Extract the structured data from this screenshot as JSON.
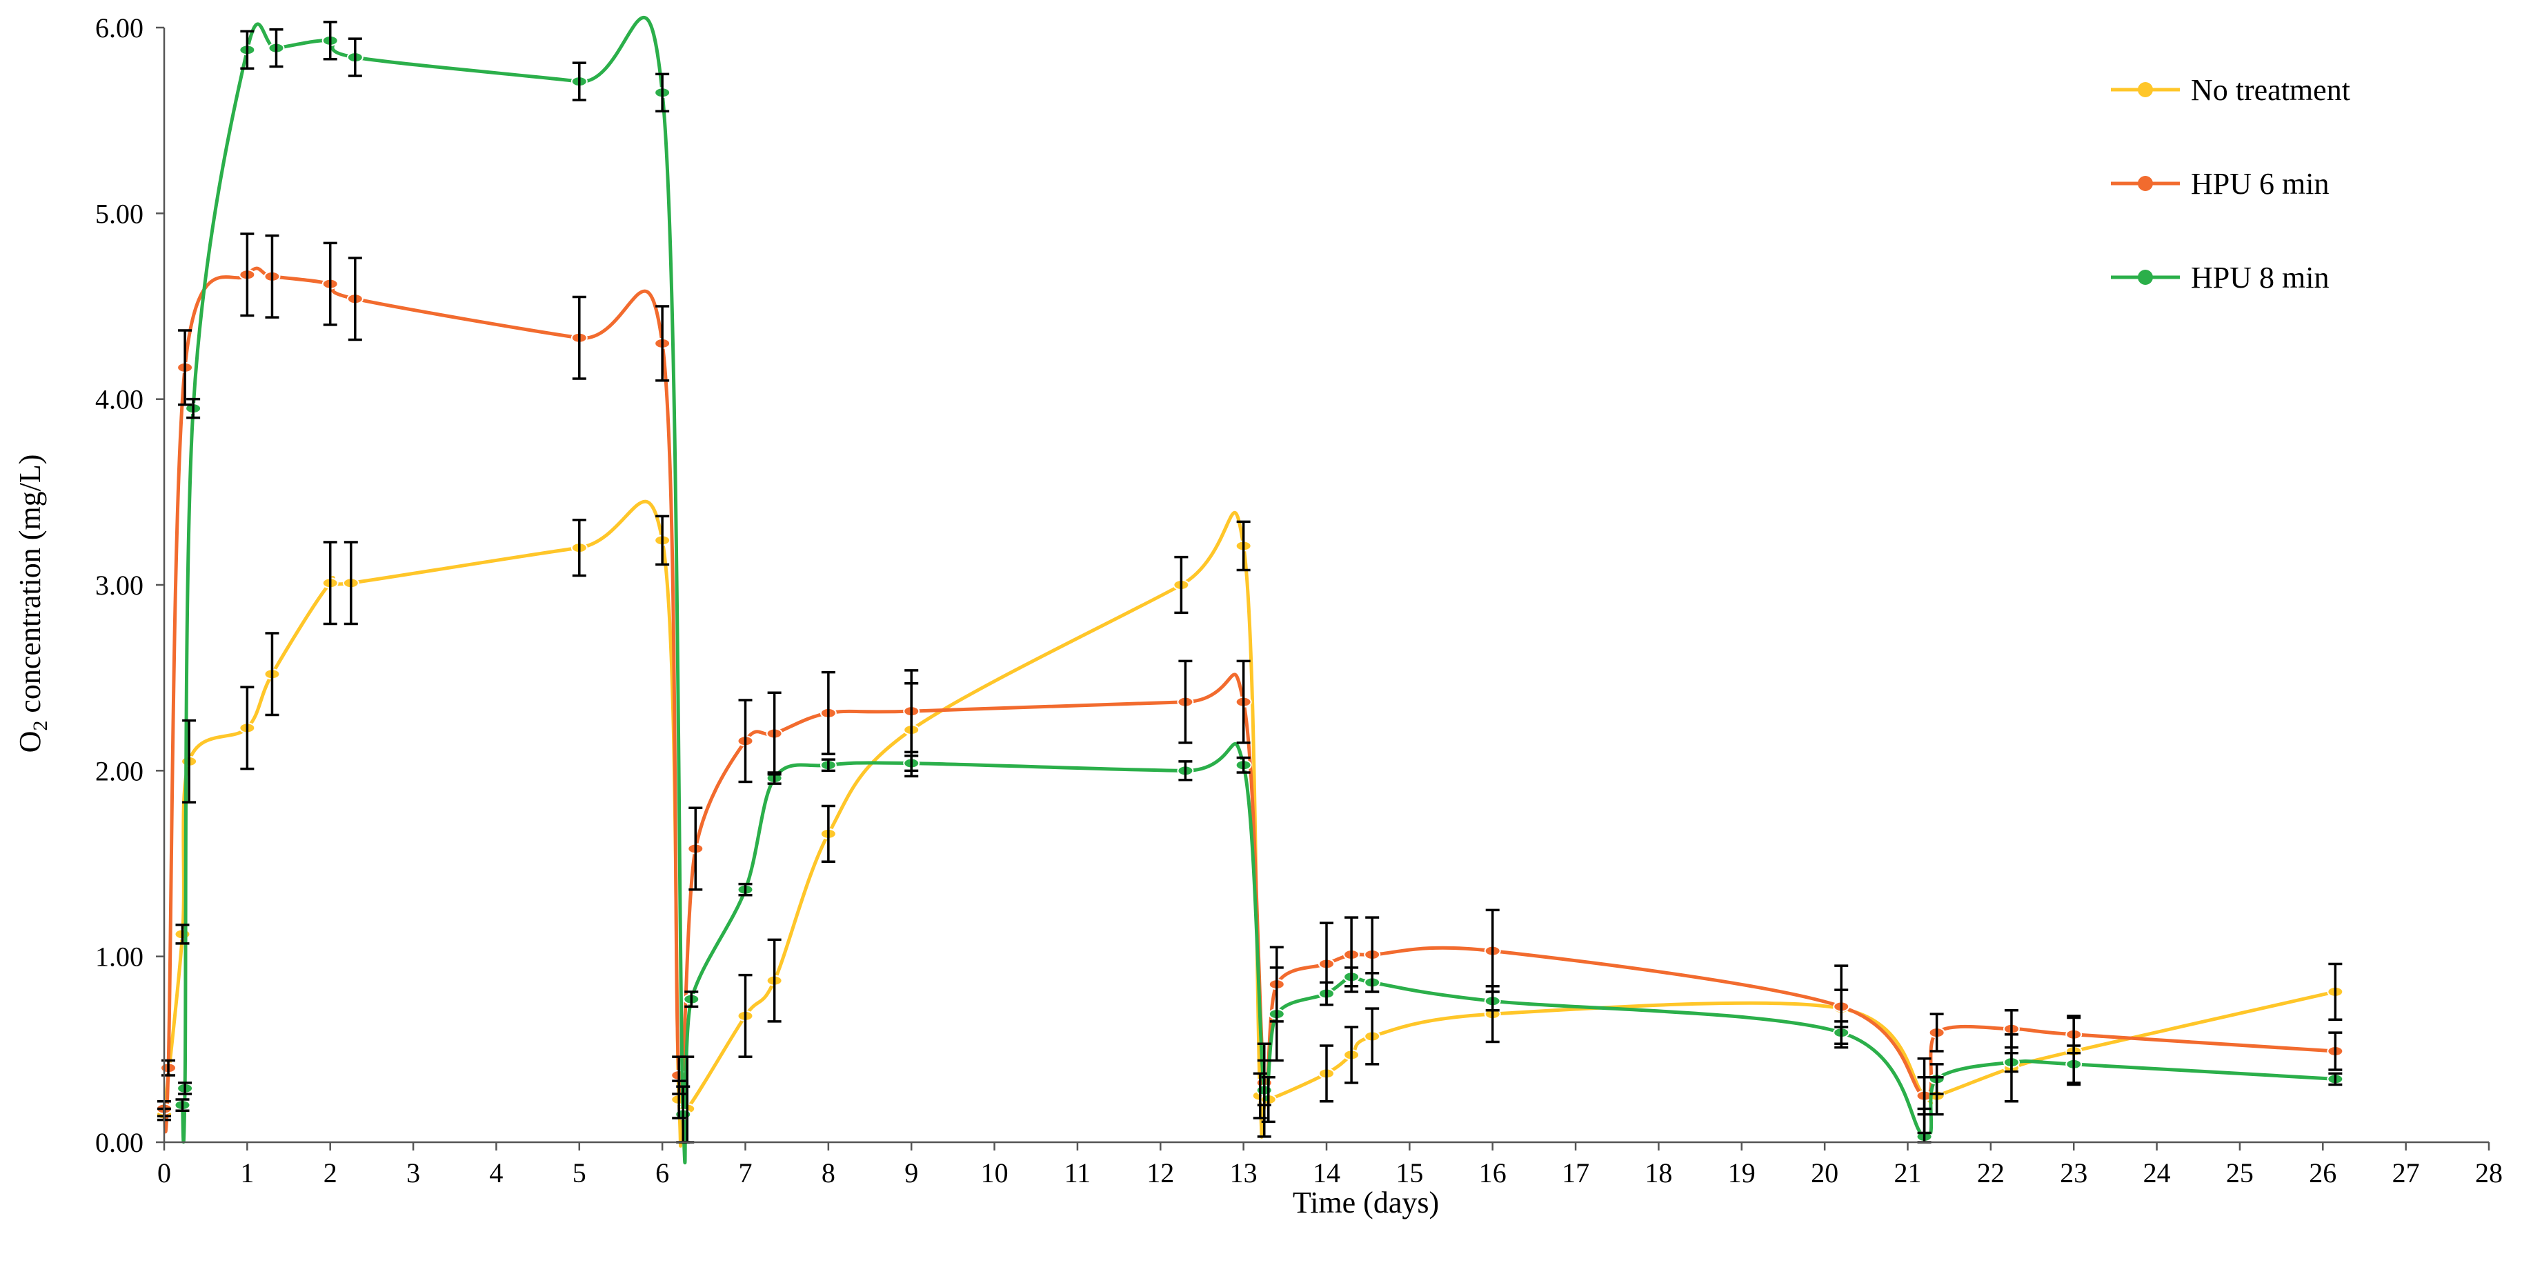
{
  "chart_data": {
    "type": "line",
    "xlabel": "Time (days)",
    "ylabel_prefix": "O",
    "ylabel_subscript": "2",
    "ylabel_suffix": " concentration (mg/L)",
    "xlim": [
      0,
      28
    ],
    "ylim": [
      0,
      6
    ],
    "x_ticks": [
      "0",
      "1",
      "2",
      "3",
      "4",
      "5",
      "6",
      "7",
      "8",
      "9",
      "10",
      "11",
      "12",
      "13",
      "14",
      "15",
      "16",
      "17",
      "18",
      "19",
      "20",
      "21",
      "22",
      "23",
      "24",
      "25",
      "26",
      "27",
      "28"
    ],
    "y_ticks": [
      "0.00",
      "1.00",
      "2.00",
      "3.00",
      "4.00",
      "5.00",
      "6.00"
    ],
    "y_tick_values": [
      0,
      1,
      2,
      3,
      4,
      5,
      6
    ],
    "grid": false,
    "legend_position": "top-right",
    "series": [
      {
        "name": "No treatment",
        "color": "#FFC629",
        "points": [
          {
            "x": 0.0,
            "y": 0.15,
            "err": 0.03
          },
          {
            "x": 0.22,
            "y": 1.12,
            "err": 0.05
          },
          {
            "x": 0.3,
            "y": 2.05,
            "err": 0.22
          },
          {
            "x": 1.0,
            "y": 2.23,
            "err": 0.22
          },
          {
            "x": 1.3,
            "y": 2.52,
            "err": 0.22
          },
          {
            "x": 2.0,
            "y": 3.01,
            "err": 0.22
          },
          {
            "x": 2.25,
            "y": 3.01,
            "err": 0.22
          },
          {
            "x": 5.0,
            "y": 3.2,
            "err": 0.15
          },
          {
            "x": 6.0,
            "y": 3.24,
            "err": 0.13
          },
          {
            "x": 6.2,
            "y": 0.23,
            "err": 0.1
          },
          {
            "x": 6.3,
            "y": 0.18,
            "err": 0.28
          },
          {
            "x": 7.0,
            "y": 0.68,
            "err": 0.22
          },
          {
            "x": 7.35,
            "y": 0.87,
            "err": 0.22
          },
          {
            "x": 8.0,
            "y": 1.66,
            "err": 0.15
          },
          {
            "x": 9.0,
            "y": 2.22,
            "err": 0.25
          },
          {
            "x": 12.25,
            "y": 3.0,
            "err": 0.15
          },
          {
            "x": 13.0,
            "y": 3.21,
            "err": 0.13
          },
          {
            "x": 13.2,
            "y": 0.25,
            "err": 0.12
          },
          {
            "x": 13.3,
            "y": 0.23,
            "err": 0.12
          },
          {
            "x": 14.0,
            "y": 0.37,
            "err": 0.15
          },
          {
            "x": 14.3,
            "y": 0.47,
            "err": 0.15
          },
          {
            "x": 14.55,
            "y": 0.57,
            "err": 0.15
          },
          {
            "x": 16.0,
            "y": 0.69,
            "err": 0.15
          },
          {
            "x": 20.2,
            "y": 0.72,
            "err": 0.1
          },
          {
            "x": 21.2,
            "y": 0.25,
            "err": 0.1
          },
          {
            "x": 21.35,
            "y": 0.25,
            "err": 0.1
          },
          {
            "x": 22.25,
            "y": 0.4,
            "err": 0.18
          },
          {
            "x": 23.0,
            "y": 0.49,
            "err": 0.18
          },
          {
            "x": 26.15,
            "y": 0.81,
            "err": 0.15
          }
        ]
      },
      {
        "name": "HPU 6 min",
        "color": "#F26B2E",
        "points": [
          {
            "x": 0.0,
            "y": 0.18,
            "err": 0.04
          },
          {
            "x": 0.05,
            "y": 0.4,
            "err": 0.04
          },
          {
            "x": 0.25,
            "y": 4.17,
            "err": 0.2
          },
          {
            "x": 1.0,
            "y": 4.67,
            "err": 0.22
          },
          {
            "x": 1.3,
            "y": 4.66,
            "err": 0.22
          },
          {
            "x": 2.0,
            "y": 4.62,
            "err": 0.22
          },
          {
            "x": 2.3,
            "y": 4.54,
            "err": 0.22
          },
          {
            "x": 5.0,
            "y": 4.33,
            "err": 0.22
          },
          {
            "x": 6.0,
            "y": 4.3,
            "err": 0.2
          },
          {
            "x": 6.2,
            "y": 0.36,
            "err": 0.1
          },
          {
            "x": 6.4,
            "y": 1.58,
            "err": 0.22
          },
          {
            "x": 7.0,
            "y": 2.16,
            "err": 0.22
          },
          {
            "x": 7.35,
            "y": 2.2,
            "err": 0.22
          },
          {
            "x": 8.0,
            "y": 2.31,
            "err": 0.22
          },
          {
            "x": 9.0,
            "y": 2.32,
            "err": 0.22
          },
          {
            "x": 12.3,
            "y": 2.37,
            "err": 0.22
          },
          {
            "x": 13.0,
            "y": 2.37,
            "err": 0.22
          },
          {
            "x": 13.25,
            "y": 0.32,
            "err": 0.12
          },
          {
            "x": 13.4,
            "y": 0.85,
            "err": 0.2
          },
          {
            "x": 14.0,
            "y": 0.96,
            "err": 0.22
          },
          {
            "x": 14.3,
            "y": 1.01,
            "err": 0.2
          },
          {
            "x": 14.55,
            "y": 1.01,
            "err": 0.2
          },
          {
            "x": 16.0,
            "y": 1.03,
            "err": 0.22
          },
          {
            "x": 20.2,
            "y": 0.73,
            "err": 0.22
          },
          {
            "x": 21.2,
            "y": 0.25,
            "err": 0.2
          },
          {
            "x": 21.35,
            "y": 0.59,
            "err": 0.1
          },
          {
            "x": 22.25,
            "y": 0.61,
            "err": 0.1
          },
          {
            "x": 23.0,
            "y": 0.58,
            "err": 0.1
          },
          {
            "x": 26.15,
            "y": 0.49,
            "err": 0.1
          }
        ]
      },
      {
        "name": "HPU 8 min",
        "color": "#2BAF4A",
        "points": [
          {
            "x": 0.22,
            "y": 0.2,
            "err": 0.03
          },
          {
            "x": 0.25,
            "y": 0.29,
            "err": 0.03
          },
          {
            "x": 0.35,
            "y": 3.95,
            "err": 0.05
          },
          {
            "x": 1.0,
            "y": 5.88,
            "err": 0.1
          },
          {
            "x": 1.35,
            "y": 5.89,
            "err": 0.1
          },
          {
            "x": 2.0,
            "y": 5.93,
            "err": 0.1
          },
          {
            "x": 2.3,
            "y": 5.84,
            "err": 0.1
          },
          {
            "x": 5.0,
            "y": 5.71,
            "err": 0.1
          },
          {
            "x": 6.0,
            "y": 5.65,
            "err": 0.1
          },
          {
            "x": 6.25,
            "y": 0.15,
            "err": 0.15
          },
          {
            "x": 6.35,
            "y": 0.77,
            "err": 0.04
          },
          {
            "x": 7.0,
            "y": 1.36,
            "err": 0.03
          },
          {
            "x": 7.35,
            "y": 1.96,
            "err": 0.03
          },
          {
            "x": 8.0,
            "y": 2.03,
            "err": 0.03
          },
          {
            "x": 9.0,
            "y": 2.04,
            "err": 0.04
          },
          {
            "x": 12.3,
            "y": 2.0,
            "err": 0.05
          },
          {
            "x": 13.0,
            "y": 2.03,
            "err": 0.04
          },
          {
            "x": 13.25,
            "y": 0.28,
            "err": 0.25
          },
          {
            "x": 13.4,
            "y": 0.69,
            "err": 0.25
          },
          {
            "x": 14.0,
            "y": 0.8,
            "err": 0.06
          },
          {
            "x": 14.3,
            "y": 0.89,
            "err": 0.05
          },
          {
            "x": 14.55,
            "y": 0.86,
            "err": 0.05
          },
          {
            "x": 16.0,
            "y": 0.76,
            "err": 0.05
          },
          {
            "x": 20.2,
            "y": 0.59,
            "err": 0.06
          },
          {
            "x": 21.2,
            "y": 0.03,
            "err": 0.15
          },
          {
            "x": 21.35,
            "y": 0.34,
            "err": 0.08
          },
          {
            "x": 22.25,
            "y": 0.43,
            "err": 0.05
          },
          {
            "x": 23.0,
            "y": 0.42,
            "err": 0.1
          },
          {
            "x": 26.15,
            "y": 0.34,
            "err": 0.03
          }
        ]
      }
    ]
  }
}
